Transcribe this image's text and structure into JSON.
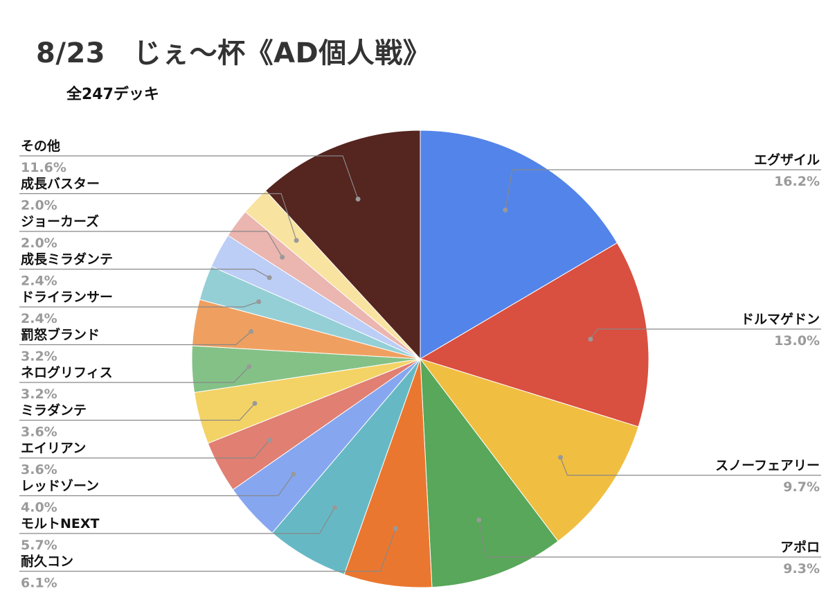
{
  "chart_data": {
    "type": "pie",
    "title": "8/23　じぇ〜杯《AD個人戦》",
    "subtitle": "全247デッキ",
    "legend": "outside labels with leader lines",
    "slices": [
      {
        "name": "エグザイル",
        "label": "16.2%",
        "value": 16.2,
        "color": "#5384E9"
      },
      {
        "name": "ドルマゲドン",
        "label": "13.0%",
        "value": 13.0,
        "color": "#D94F40"
      },
      {
        "name": "スノーフェアリー",
        "label": "9.7%",
        "value": 9.7,
        "color": "#F0BE41"
      },
      {
        "name": "アポロ",
        "label": "9.3%",
        "value": 9.3,
        "color": "#58A75A"
      },
      {
        "name": "耐久コン",
        "label": "6.1%",
        "value": 6.1,
        "color": "#EA7730"
      },
      {
        "name": "モルトNEXT",
        "label": "5.7%",
        "value": 5.7,
        "color": "#66B9C4"
      },
      {
        "name": "レッドゾーン",
        "label": "4.0%",
        "value": 4.0,
        "color": "#86A7F0"
      },
      {
        "name": "エイリアン",
        "label": "3.6%",
        "value": 3.6,
        "color": "#E07F72"
      },
      {
        "name": "ミラダンテ",
        "label": "3.6%",
        "value": 3.6,
        "color": "#F3D366"
      },
      {
        "name": "ネログリフィス",
        "label": "3.2%",
        "value": 3.2,
        "color": "#84C187"
      },
      {
        "name": "罰怒ブランド",
        "label": "3.2%",
        "value": 3.2,
        "color": "#EFA060"
      },
      {
        "name": "ドライランサー",
        "label": "2.4%",
        "value": 2.4,
        "color": "#94CFD6"
      },
      {
        "name": "成長ミラダンテ",
        "label": "2.4%",
        "value": 2.4,
        "color": "#BCCEF6"
      },
      {
        "name": "ジョーカーズ",
        "label": "2.0%",
        "value": 2.0,
        "color": "#EBB5B0"
      },
      {
        "name": "成長バスター",
        "label": "2.0%",
        "value": 2.0,
        "color": "#F8E3A0"
      },
      {
        "name": "その他",
        "label": "11.6%",
        "value": 11.6,
        "color": "#552520"
      }
    ]
  }
}
